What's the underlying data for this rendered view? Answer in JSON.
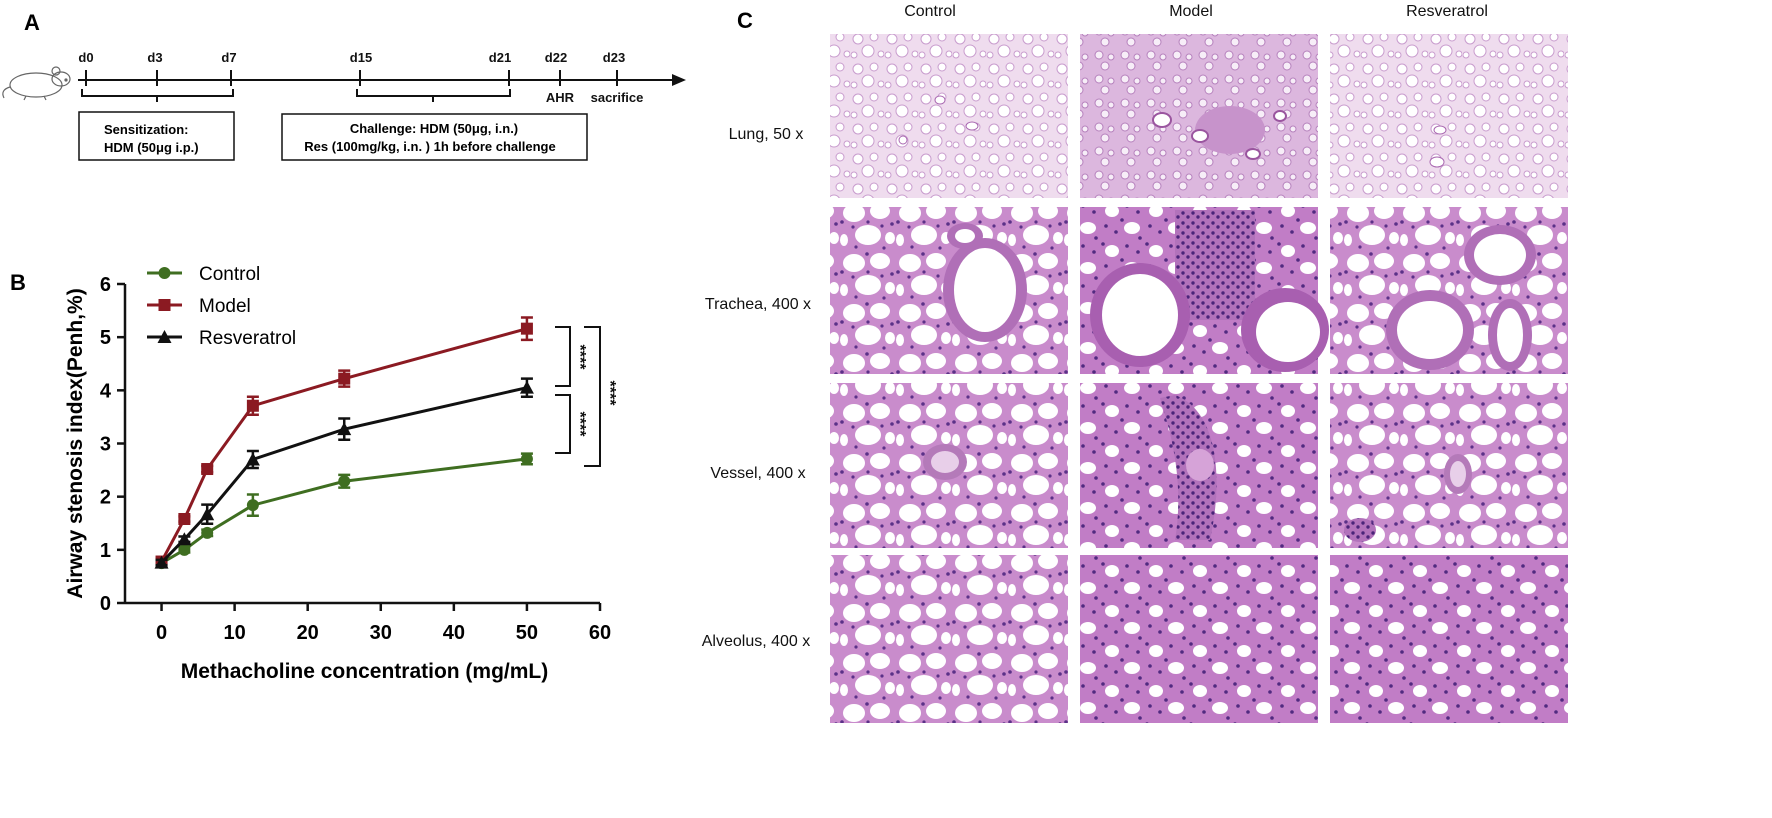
{
  "panel_a": {
    "label": "A",
    "days": [
      "d0",
      "d3",
      "d7",
      "d15",
      "d21",
      "d22",
      "d23"
    ],
    "ahr_label": "AHR",
    "sacrifice_label": "sacrifice",
    "box1_lines": [
      "Sensitization:",
      "HDM (50μg i.p.)"
    ],
    "box2_lines": [
      "Challenge: HDM (50μg, i.n.)",
      "Res (100mg/kg, i.n. ) 1h before challenge"
    ],
    "mouse_icon": "mouse-icon"
  },
  "panel_b": {
    "label": "B",
    "significance": [
      "****",
      "****",
      "****"
    ]
  },
  "chart_data": {
    "type": "line",
    "title": "",
    "xlabel": "Methacholine concentration (mg/mL)",
    "ylabel": "Airway stenosis index(Penh,%)",
    "xlim": [
      -5,
      60
    ],
    "ylim": [
      0,
      6
    ],
    "xticks": [
      0,
      10,
      20,
      30,
      40,
      50,
      60
    ],
    "yticks": [
      0,
      1,
      2,
      3,
      4,
      5,
      6
    ],
    "x": [
      0,
      3.125,
      6.25,
      12.5,
      25,
      50
    ],
    "legend_position": "top-left",
    "series": [
      {
        "name": "Control",
        "color": "#3f6e21",
        "marker": "circle",
        "values": [
          0.75,
          1.0,
          1.32,
          1.84,
          2.29,
          2.71
        ],
        "errors": [
          0.07,
          0.05,
          0.06,
          0.2,
          0.12,
          0.1
        ]
      },
      {
        "name": "Model",
        "color": "#8b1a22",
        "marker": "square",
        "values": [
          0.78,
          1.58,
          2.52,
          3.71,
          4.22,
          5.16
        ],
        "errors": [
          0.05,
          0.05,
          0.06,
          0.17,
          0.15,
          0.21
        ]
      },
      {
        "name": "Resveratrol",
        "color": "#111111",
        "marker": "triangle",
        "values": [
          0.76,
          1.2,
          1.67,
          2.7,
          3.27,
          4.05
        ],
        "errors": [
          0.05,
          0.05,
          0.18,
          0.16,
          0.2,
          0.17
        ]
      }
    ]
  },
  "panel_c": {
    "label": "C",
    "columns": [
      "Control",
      "Model",
      "Resveratrol"
    ],
    "rows": [
      "Lung, 50 x",
      "Trachea, 400 x",
      "Vessel, 400 x",
      "Alveolus, 400 x"
    ]
  },
  "colors": {
    "he_background": "#f1dcf0",
    "he_tissue": "#c98ccc",
    "he_nuclei": "#6a3a90",
    "he_airspace": "#ffffff"
  }
}
